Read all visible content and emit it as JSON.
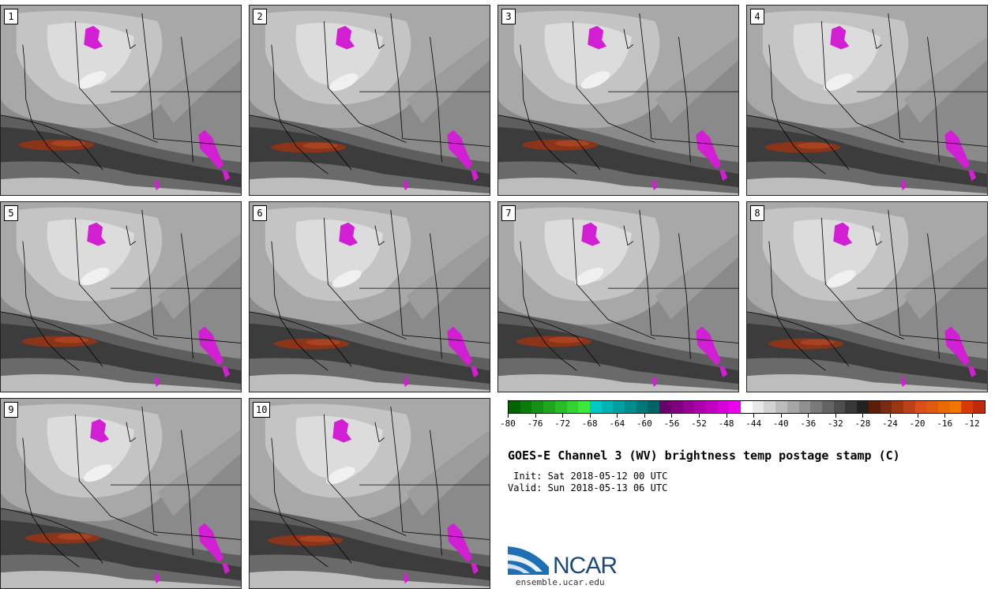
{
  "panels": [
    {
      "label": "1"
    },
    {
      "label": "2"
    },
    {
      "label": "3"
    },
    {
      "label": "4"
    },
    {
      "label": "5"
    },
    {
      "label": "6"
    },
    {
      "label": "7"
    },
    {
      "label": "8"
    },
    {
      "label": "9"
    },
    {
      "label": "10"
    }
  ],
  "colorbar": {
    "colors": [
      "#006400",
      "#0a7a0a",
      "#149014",
      "#1ea61e",
      "#28bc28",
      "#32d232",
      "#3ce83c",
      "#00c8c8",
      "#00b4b4",
      "#00a0a0",
      "#008c8c",
      "#007878",
      "#006464",
      "#6a006a",
      "#800080",
      "#960096",
      "#ac00ac",
      "#c200c2",
      "#d800d8",
      "#ee00ee",
      "#ffffff",
      "#e8e8e8",
      "#d2d2d2",
      "#bcbcbc",
      "#a6a6a6",
      "#909090",
      "#7a7a7a",
      "#646464",
      "#4e4e4e",
      "#383838",
      "#222222",
      "#5a1e0a",
      "#7a2a0e",
      "#9a3612",
      "#ba4216",
      "#da4e1a",
      "#e05a10",
      "#e86a00",
      "#f07800",
      "#d63a00",
      "#c02a0a"
    ],
    "tick_labels": [
      "-80",
      "-76",
      "-72",
      "-68",
      "-64",
      "-60",
      "-56",
      "-52",
      "-48",
      "-44",
      "-40",
      "-36",
      "-32",
      "-28",
      "-24",
      "-20",
      "-16",
      "-12"
    ],
    "tick_min": -80,
    "tick_max": -10
  },
  "title": "GOES-E Channel 3 (WV) brightness temp postage stamp (C)",
  "init": " Init: Sat 2018-05-12 00 UTC",
  "valid": "Valid: Sun 2018-05-13 06 UTC",
  "logo": {
    "name": "NCAR",
    "url": "ensemble.ucar.edu"
  }
}
